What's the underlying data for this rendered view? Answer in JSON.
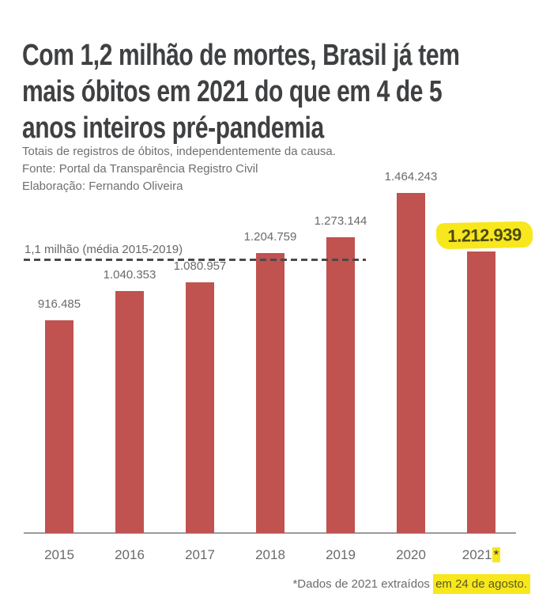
{
  "title_lines": [
    "Com 1,2 milhão de mortes, Brasil já tem",
    "mais óbitos em 2021 do que em 4 de 5",
    "anos inteiros pré-pandemia"
  ],
  "notes_lines": [
    "Totais de registros de óbitos, independentemente da causa.",
    "Fonte: Portal da Transparência Registro Civil",
    "Elaboração: Fernando Oliveira"
  ],
  "chart_data": {
    "type": "bar",
    "title": "Com 1,2 milhão de mortes, Brasil já tem mais óbitos em 2021 do que em 4 de 5 anos inteiros pré-pandemia",
    "categories": [
      "2015",
      "2016",
      "2017",
      "2018",
      "2019",
      "2020",
      "2021"
    ],
    "values": [
      916485,
      1040353,
      1080957,
      1204759,
      1273144,
      1464243,
      1212939
    ],
    "value_labels": [
      "916.485",
      "1.040.353",
      "1.080.957",
      "1.204.759",
      "1.273.144",
      "1.464.243",
      "1.212.939"
    ],
    "highlighted_index": 6,
    "last_category_marker": "*",
    "average_line": {
      "label": "1,1 milhão (média 2015-2019)",
      "value": 1100000
    },
    "xlabel": "",
    "ylabel": "",
    "ylim": [
      0,
      1500000
    ],
    "grid": false,
    "legend": false,
    "bar_color": "#c0524f",
    "highlight_color": "#f8e71c"
  },
  "footnote": {
    "prefix": "*Dados de 2021 extraídos ",
    "highlight": "em 24 de agosto."
  },
  "colors": {
    "title": "#3f4042",
    "text_gray": "#6a6a6a",
    "axis": "#9b9b9b",
    "dash": "#4a4a4a",
    "highlight_text": "#4b4b14"
  }
}
